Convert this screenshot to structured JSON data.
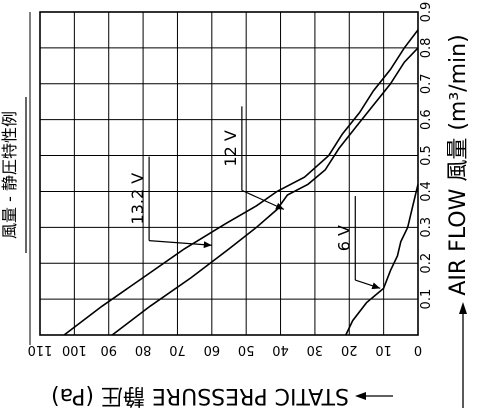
{
  "chart_data": {
    "type": "line",
    "title": "風量 - 静圧特性例",
    "xlabel": "AIR FLOW 風量 (m³/min)",
    "ylabel": "STATIC PRESSURE 静圧 (Pa)",
    "xlim": [
      0,
      0.9
    ],
    "ylim": [
      0,
      110
    ],
    "x_ticks": [
      "0.1",
      "0.2",
      "0.3",
      "0.4",
      "0.5",
      "0.6",
      "0.7",
      "0.8",
      "0.9"
    ],
    "y_ticks": [
      "0",
      "10",
      "20",
      "30",
      "40",
      "50",
      "60",
      "70",
      "80",
      "90",
      "100",
      "110"
    ],
    "grid": true,
    "series": [
      {
        "name": "13.2 V",
        "points": [
          [
            0,
            103
          ],
          [
            0.08,
            92
          ],
          [
            0.16,
            80
          ],
          [
            0.24,
            68
          ],
          [
            0.31,
            56
          ],
          [
            0.36,
            47
          ],
          [
            0.4,
            41
          ],
          [
            0.44,
            33
          ],
          [
            0.5,
            26
          ],
          [
            0.56,
            22
          ],
          [
            0.62,
            17
          ],
          [
            0.68,
            13
          ],
          [
            0.74,
            8
          ],
          [
            0.8,
            4
          ],
          [
            0.85,
            0
          ]
        ]
      },
      {
        "name": "12 V",
        "points": [
          [
            0,
            89
          ],
          [
            0.08,
            78
          ],
          [
            0.16,
            66
          ],
          [
            0.24,
            55
          ],
          [
            0.3,
            47
          ],
          [
            0.35,
            41
          ],
          [
            0.39,
            38
          ],
          [
            0.42,
            32
          ],
          [
            0.46,
            27
          ],
          [
            0.52,
            23
          ],
          [
            0.58,
            18
          ],
          [
            0.64,
            13
          ],
          [
            0.7,
            8
          ],
          [
            0.76,
            4
          ],
          [
            0.8,
            0
          ]
        ]
      },
      {
        "name": "6 V",
        "points": [
          [
            0,
            21
          ],
          [
            0.04,
            19
          ],
          [
            0.09,
            15
          ],
          [
            0.13,
            10
          ],
          [
            0.18,
            8
          ],
          [
            0.22,
            6
          ],
          [
            0.26,
            5
          ],
          [
            0.3,
            3
          ],
          [
            0.36,
            1.5
          ],
          [
            0.42,
            0
          ]
        ]
      }
    ],
    "annotations": [
      "13.2 V",
      "12 V",
      "6 V"
    ]
  }
}
